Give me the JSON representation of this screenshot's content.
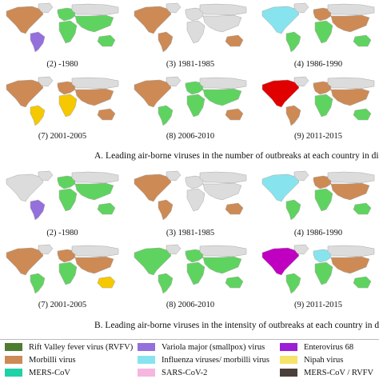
{
  "section_a": {
    "title": "A. Leading air-borne viruses in the number of outbreaks at each country in di",
    "captions": [
      "(2) -1980",
      "(3) 1981-1985",
      "(4) 1986-1990",
      "(7) 2001-2005",
      "(8) 2006-2010",
      "(9) 2011-2015"
    ]
  },
  "section_b": {
    "title": "B. Leading air-borne viruses in the intensity of outbreaks at each country in d",
    "captions": [
      "(2) -1980",
      "(3) 1981-1985",
      "(4) 1986-1990",
      "(7) 2001-2005",
      "(8) 2006-2010",
      "(9) 2011-2015"
    ]
  },
  "legend": [
    {
      "label": "Rift Valley fever virus (RVFV)",
      "color": "#4e7d32"
    },
    {
      "label": "Variola major (smallpox) virus",
      "color": "#9370db"
    },
    {
      "label": "Enterovirus 68",
      "color": "#9b1fd4"
    },
    {
      "label": "Morbilli virus",
      "color": "#cd8a55"
    },
    {
      "label": "Influenza viruses/ morbilli virus",
      "color": "#87e4ef"
    },
    {
      "label": "Nipah virus",
      "color": "#f5e36a"
    },
    {
      "label": "MERS-CoV",
      "color": "#1fd1a6"
    },
    {
      "label": "SARS-CoV-2",
      "color": "#f6b6e0"
    },
    {
      "label": "MERS-CoV / RVFV",
      "color": "#4a3f3a"
    }
  ],
  "colors": {
    "base_land": "#dcdcdc",
    "land_border": "#a8a8a8",
    "green": "#5fd35f",
    "orange": "#cd8a55",
    "red": "#e00000",
    "yellow": "#f5c800",
    "cyan": "#87e4ef",
    "purple": "#9370db",
    "magenta": "#c000c0",
    "navy": "#233a8c"
  },
  "maps": {
    "a2": {
      "NA": "orange",
      "GL": "base",
      "SA": "purple",
      "EU": "green",
      "AF": "green",
      "RU": "base",
      "AS": "green",
      "AU": "green"
    },
    "a3": {
      "NA": "orange",
      "GL": "base",
      "SA": "orange",
      "EU": "base",
      "AF": "base",
      "RU": "base",
      "AS": "base",
      "AU": "orange"
    },
    "a4": {
      "NA": "cyan",
      "GL": "base",
      "SA": "green",
      "EU": "orange",
      "AF": "green",
      "RU": "base",
      "AS": "orange",
      "AU": "green"
    },
    "a7": {
      "NA": "orange",
      "GL": "base",
      "SA": "yellow",
      "EU": "orange",
      "AF": "yellow",
      "RU": "base",
      "AS": "orange",
      "AU": "orange"
    },
    "a8": {
      "NA": "orange",
      "GL": "base",
      "SA": "green",
      "EU": "green",
      "AF": "green",
      "RU": "base",
      "AS": "green",
      "AU": "orange"
    },
    "a9": {
      "NA": "red",
      "GL": "base",
      "SA": "orange",
      "EU": "orange",
      "AF": "green",
      "RU": "base",
      "AS": "orange",
      "AU": "green"
    },
    "b2": {
      "NA": "base",
      "GL": "base",
      "SA": "purple",
      "EU": "green",
      "AF": "green",
      "RU": "base",
      "AS": "green",
      "AU": "green"
    },
    "b3": {
      "NA": "orange",
      "GL": "base",
      "SA": "orange",
      "EU": "base",
      "AF": "base",
      "RU": "base",
      "AS": "base",
      "AU": "orange"
    },
    "b4": {
      "NA": "cyan",
      "GL": "base",
      "SA": "green",
      "EU": "orange",
      "AF": "green",
      "RU": "base",
      "AS": "orange",
      "AU": "green"
    },
    "b7": {
      "NA": "orange",
      "GL": "base",
      "SA": "green",
      "EU": "orange",
      "AF": "green",
      "RU": "base",
      "AS": "orange",
      "AU": "yellow"
    },
    "b8": {
      "NA": "green",
      "GL": "base",
      "SA": "green",
      "EU": "green",
      "AF": "green",
      "RU": "base",
      "AS": "green",
      "AU": "green"
    },
    "b9": {
      "NA": "magenta",
      "GL": "base",
      "SA": "green",
      "EU": "cyan",
      "AF": "green",
      "RU": "base",
      "AS": "orange",
      "AU": "green"
    }
  }
}
